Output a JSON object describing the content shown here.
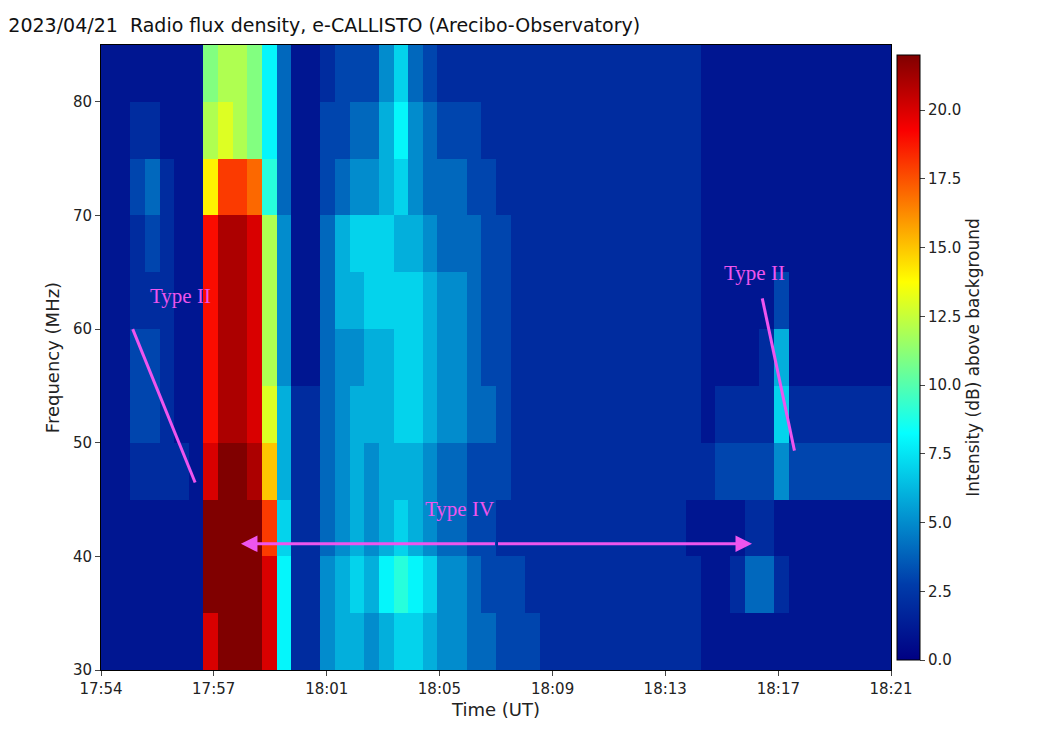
{
  "chart_data": {
    "type": "heatmap",
    "title": "2023/04/21  Radio flux density, e-CALLISTO (Arecibo-Observatory)",
    "x_label": "Time (UT)",
    "y_label": "Frequency (MHz)",
    "color": "jet",
    "grid": false,
    "x": [
      "17:54:15",
      "17:54:45",
      "17:55:15",
      "17:55:45",
      "17:56:15",
      "17:56:45",
      "17:57:15",
      "17:57:45",
      "17:58:15",
      "17:58:45",
      "17:59:15",
      "17:59:45",
      "18:00:15",
      "18:00:45",
      "18:01:15",
      "18:01:45",
      "18:02:15",
      "18:02:45",
      "18:03:15",
      "18:03:45",
      "18:04:15",
      "18:04:45",
      "18:05:15",
      "18:05:45",
      "18:06:15",
      "18:06:45",
      "18:07:15",
      "18:07:45",
      "18:08:15",
      "18:08:45",
      "18:09:15",
      "18:09:45",
      "18:10:15",
      "18:10:45",
      "18:11:15",
      "18:11:45",
      "18:12:15",
      "18:12:45",
      "18:13:15",
      "18:13:45",
      "18:14:15",
      "18:14:45",
      "18:15:15",
      "18:15:45",
      "18:16:15",
      "18:16:45",
      "18:17:15",
      "18:17:45",
      "18:18:15",
      "18:18:45",
      "18:19:15",
      "18:19:45",
      "18:20:15",
      "18:20:45"
    ],
    "y": [
      32.5,
      37.5,
      42.5,
      47.5,
      52.5,
      57.5,
      62.5,
      67.5,
      72.5,
      77.5,
      82.5
    ],
    "cells": [
      [
        1,
        1,
        1,
        1,
        1,
        1,
        1,
        20,
        22,
        22,
        22,
        20,
        8,
        2,
        2,
        5,
        6,
        6,
        5,
        6,
        7,
        7,
        6,
        5,
        5,
        4,
        4,
        3,
        3,
        3,
        2,
        2,
        2,
        2,
        2,
        2,
        2,
        2,
        2,
        2,
        2,
        1,
        1,
        1,
        1,
        1,
        1,
        1,
        1,
        1,
        1,
        1,
        1,
        1
      ],
      [
        1,
        1,
        1,
        1,
        1,
        1,
        1,
        22,
        22,
        22,
        22,
        20,
        8,
        2,
        2,
        5,
        6,
        7,
        6,
        8,
        9,
        8,
        7,
        5,
        5,
        4,
        3,
        3,
        3,
        2,
        2,
        2,
        2,
        2,
        2,
        2,
        2,
        2,
        2,
        2,
        2,
        1,
        1,
        2,
        4,
        4,
        2,
        1,
        1,
        1,
        1,
        1,
        1,
        1
      ],
      [
        1,
        1,
        1,
        1,
        1,
        1,
        1,
        22,
        22,
        22,
        22,
        18,
        7,
        2,
        2,
        4,
        5,
        6,
        5,
        6,
        7,
        6,
        5,
        4,
        4,
        3,
        3,
        2,
        2,
        2,
        2,
        2,
        2,
        2,
        2,
        2,
        2,
        2,
        2,
        2,
        1,
        1,
        1,
        1,
        2,
        2,
        1,
        1,
        1,
        1,
        1,
        1,
        1,
        1
      ],
      [
        1,
        1,
        2,
        2,
        2,
        2,
        1,
        20,
        22,
        22,
        21,
        15,
        6,
        2,
        2,
        4,
        5,
        6,
        5,
        6,
        6,
        6,
        5,
        4,
        4,
        3,
        3,
        3,
        2,
        2,
        2,
        2,
        2,
        2,
        2,
        2,
        2,
        2,
        2,
        2,
        2,
        2,
        3,
        3,
        3,
        3,
        5,
        3,
        3,
        3,
        3,
        3,
        3,
        3
      ],
      [
        1,
        1,
        3,
        3,
        2,
        1,
        1,
        19,
        21,
        21,
        20,
        13,
        6,
        2,
        2,
        4,
        5,
        6,
        6,
        6,
        7,
        7,
        6,
        5,
        5,
        4,
        4,
        3,
        2,
        2,
        2,
        2,
        2,
        2,
        2,
        2,
        2,
        2,
        2,
        2,
        2,
        1,
        2,
        2,
        2,
        2,
        7,
        2,
        2,
        2,
        2,
        2,
        2,
        2
      ],
      [
        1,
        1,
        3,
        3,
        2,
        1,
        1,
        19,
        21,
        21,
        20,
        12,
        5,
        1,
        1,
        4,
        5,
        5,
        6,
        6,
        7,
        7,
        6,
        5,
        5,
        4,
        3,
        3,
        2,
        2,
        2,
        2,
        2,
        2,
        2,
        2,
        2,
        2,
        2,
        2,
        2,
        1,
        1,
        1,
        1,
        2,
        6,
        1,
        1,
        1,
        1,
        1,
        1,
        1
      ],
      [
        1,
        1,
        2,
        2,
        2,
        1,
        1,
        19,
        21,
        21,
        20,
        12,
        5,
        1,
        1,
        4,
        6,
        6,
        7,
        7,
        7,
        7,
        6,
        5,
        5,
        4,
        3,
        3,
        2,
        2,
        2,
        2,
        2,
        2,
        2,
        2,
        2,
        2,
        2,
        2,
        2,
        1,
        1,
        1,
        1,
        1,
        3,
        1,
        1,
        1,
        1,
        1,
        1,
        1
      ],
      [
        1,
        1,
        2,
        3,
        2,
        1,
        1,
        19,
        21,
        21,
        20,
        12,
        5,
        1,
        1,
        4,
        6,
        7,
        7,
        7,
        6,
        6,
        5,
        4,
        4,
        4,
        3,
        3,
        2,
        2,
        2,
        2,
        2,
        2,
        2,
        2,
        2,
        2,
        2,
        2,
        2,
        1,
        1,
        1,
        1,
        1,
        1,
        1,
        1,
        1,
        1,
        1,
        1,
        1
      ],
      [
        1,
        1,
        3,
        4,
        2,
        1,
        1,
        14,
        18,
        18,
        17,
        9,
        4,
        1,
        1,
        3,
        4,
        5,
        5,
        6,
        7,
        5,
        4,
        4,
        4,
        3,
        3,
        2,
        2,
        2,
        2,
        2,
        2,
        2,
        2,
        2,
        2,
        2,
        2,
        2,
        2,
        1,
        1,
        1,
        1,
        1,
        1,
        1,
        1,
        1,
        1,
        1,
        1,
        1
      ],
      [
        1,
        1,
        2,
        2,
        1,
        1,
        1,
        12,
        13,
        12,
        11,
        8,
        4,
        1,
        1,
        3,
        3,
        4,
        4,
        6,
        8,
        5,
        4,
        3,
        3,
        3,
        2,
        2,
        2,
        2,
        2,
        2,
        2,
        2,
        2,
        2,
        2,
        2,
        2,
        2,
        2,
        1,
        1,
        1,
        1,
        1,
        1,
        1,
        1,
        1,
        1,
        1,
        1,
        1
      ],
      [
        1,
        1,
        1,
        1,
        1,
        1,
        1,
        11,
        12,
        12,
        11,
        8,
        4,
        1,
        1,
        2,
        3,
        3,
        3,
        5,
        7,
        4,
        3,
        2,
        2,
        2,
        2,
        2,
        2,
        2,
        2,
        2,
        2,
        2,
        2,
        2,
        2,
        2,
        2,
        2,
        2,
        1,
        1,
        1,
        1,
        1,
        1,
        1,
        1,
        1,
        1,
        1,
        1,
        1
      ]
    ],
    "xlim": [
      "17:54:00",
      "18:21:00"
    ],
    "xticks": [
      {
        "value": "17:54:00",
        "label": "17:54"
      },
      {
        "value": "17:57:51",
        "label": "17:57"
      },
      {
        "value": "18:01:43",
        "label": "18:01"
      },
      {
        "value": "18:05:34",
        "label": "18:05"
      },
      {
        "value": "18:09:26",
        "label": "18:09"
      },
      {
        "value": "18:13:17",
        "label": "18:13"
      },
      {
        "value": "18:17:09",
        "label": "18:17"
      },
      {
        "value": "18:21:00",
        "label": "18:21"
      }
    ],
    "ylim": [
      30,
      85
    ],
    "yticks": [
      30,
      40,
      50,
      60,
      70,
      80
    ],
    "colorbar_label": "Intensity (dB) above background",
    "colorbar_range": [
      0,
      22
    ],
    "colorbar_ticks": [
      {
        "value": 0,
        "label": "0.0"
      },
      {
        "value": 2.5,
        "label": "2.5"
      },
      {
        "value": 5,
        "label": "5.0"
      },
      {
        "value": 7.5,
        "label": "7.5"
      },
      {
        "value": 10,
        "label": "10.0"
      },
      {
        "value": 12.5,
        "label": "12.5"
      },
      {
        "value": 15,
        "label": "15.0"
      },
      {
        "value": 17.5,
        "label": "17.5"
      },
      {
        "value": 20,
        "label": "20.0"
      }
    ],
    "annotations": [
      {
        "text": "Type II",
        "x": "17:56:42",
        "y": 62.9,
        "line": {
          "x": [
            "17:55:05",
            "17:57:13"
          ],
          "y": [
            60,
            46.5
          ]
        }
      },
      {
        "text": "Type IV",
        "x": "18:06:16",
        "y": 44.2,
        "double_arrow": {
          "x": [
            "17:58:47",
            "18:16:15"
          ],
          "y": [
            41.1,
            41.1
          ]
        }
      },
      {
        "text": "Type II",
        "x": "18:16:21",
        "y": 64.9,
        "line": {
          "x": [
            "18:16:36",
            "18:17:42"
          ],
          "y": [
            62.7,
            49.3
          ]
        }
      }
    ]
  }
}
